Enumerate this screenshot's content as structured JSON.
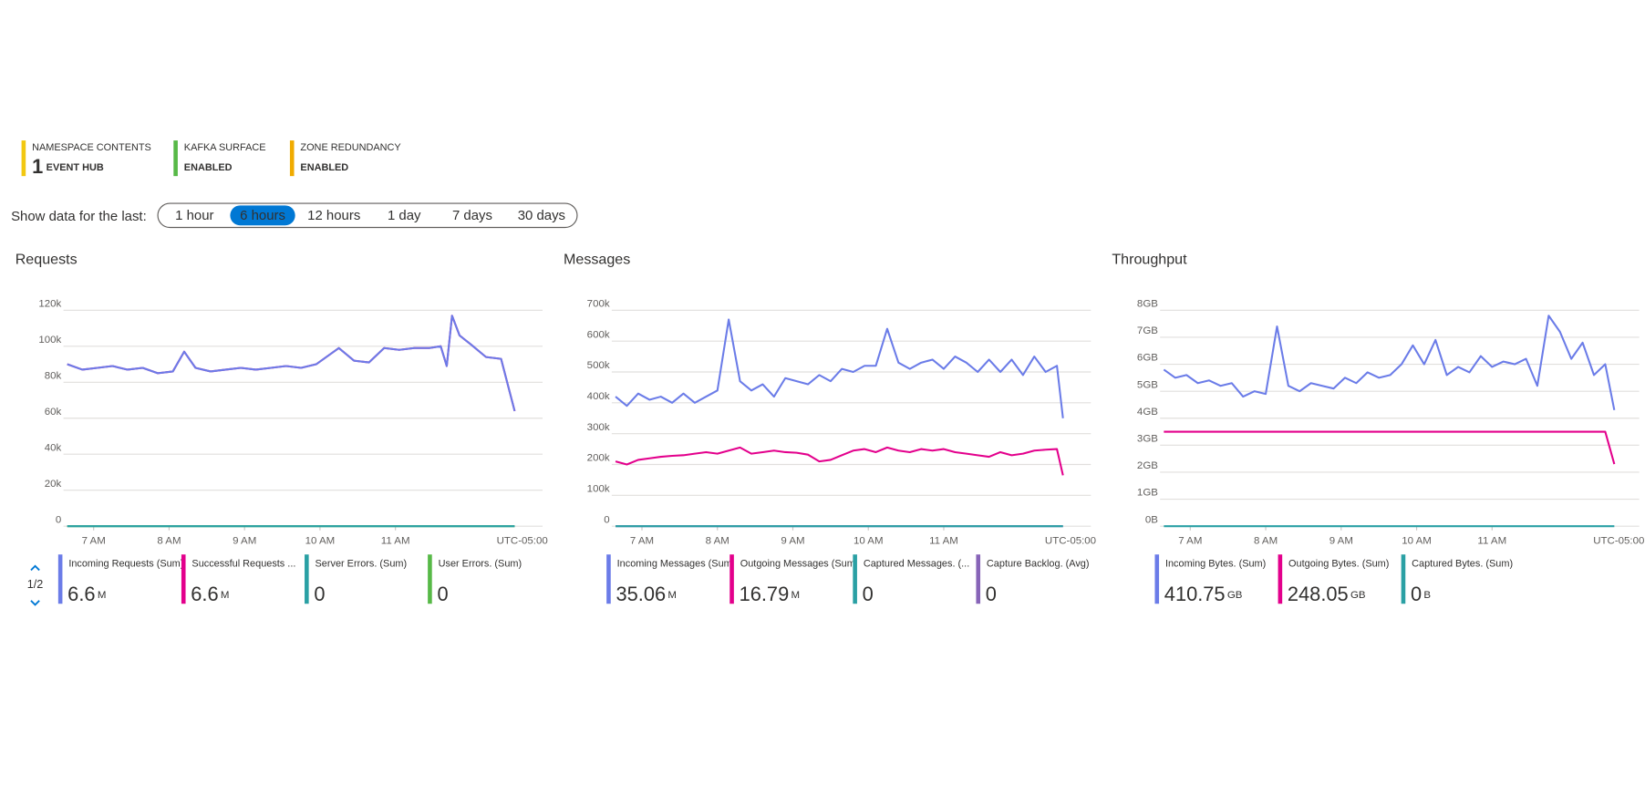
{
  "tiles": [
    {
      "label": "NAMESPACE CONTENTS",
      "value": 1,
      "unit": "EVENT HUB",
      "color": "#f2c811"
    },
    {
      "label": "KAFKA SURFACE",
      "value": "ENABLED",
      "color": "#57b947"
    },
    {
      "label": "ZONE REDUNDANCY",
      "value": "ENABLED",
      "color": "#f0ab00"
    }
  ],
  "time_range": {
    "label": "Show data for the last:",
    "options": [
      "1 hour",
      "6 hours",
      "12 hours",
      "1 day",
      "7 days",
      "30 days"
    ],
    "selected_index": 1
  },
  "chart_data": [
    {
      "type": "line",
      "title": "Requests",
      "legend_page": "1/2",
      "timezone": "UTC-05:00",
      "xlim": [
        6.6,
        12.95
      ],
      "xticks": [
        {
          "value": 7,
          "label": "7 AM"
        },
        {
          "value": 8,
          "label": "8 AM"
        },
        {
          "value": 9,
          "label": "9 AM"
        },
        {
          "value": 10,
          "label": "10 AM"
        },
        {
          "value": 11,
          "label": "11 AM"
        }
      ],
      "ylim": [
        0,
        120000
      ],
      "yticks": [
        0,
        {
          "value": 20000,
          "label": "20k"
        },
        {
          "value": 40000,
          "label": "40k"
        },
        {
          "value": 60000,
          "label": "60k"
        },
        {
          "value": 80000,
          "label": "80k"
        },
        {
          "value": 100000,
          "label": "100k"
        },
        {
          "value": 120000,
          "label": "120k"
        }
      ],
      "grid": true,
      "x": [
        6.65,
        6.85,
        7.05,
        7.25,
        7.45,
        7.65,
        7.85,
        8.05,
        8.2,
        8.35,
        8.55,
        8.75,
        8.95,
        9.15,
        9.35,
        9.55,
        9.75,
        9.95,
        10.15,
        10.25,
        10.45,
        10.65,
        10.85,
        11.05,
        11.25,
        11.45,
        11.6,
        11.68,
        11.75,
        11.85,
        12.0,
        12.2,
        12.4,
        12.58
      ],
      "series": [
        {
          "name": "Incoming Requests (Sum)",
          "total": "6.6",
          "unit": "M",
          "color": "#6b7ce8",
          "values": [
            90000,
            87000,
            88000,
            89000,
            87000,
            88000,
            85000,
            86000,
            97000,
            88000,
            86000,
            87000,
            88000,
            87000,
            88000,
            89000,
            88000,
            90000,
            96000,
            99000,
            92000,
            91000,
            99000,
            98000,
            99000,
            99000,
            100000,
            89000,
            117000,
            106000,
            101000,
            94000,
            93000,
            64000
          ]
        },
        {
          "name": "Successful Requests ...",
          "total": "6.6",
          "unit": "M",
          "color": "#e3008c",
          "values": [
            90000,
            87000,
            88000,
            89000,
            87000,
            88000,
            85000,
            86000,
            97000,
            88000,
            86000,
            87000,
            88000,
            87000,
            88000,
            89000,
            88000,
            90000,
            96000,
            99000,
            92000,
            91000,
            99000,
            98000,
            99000,
            99000,
            100000,
            89000,
            117000,
            106000,
            101000,
            94000,
            93000,
            64000
          ]
        },
        {
          "name": "Server Errors. (Sum)",
          "total": "0",
          "color": "#2aa0a4",
          "x": [
            6.65,
            12.58
          ],
          "values": [
            0,
            0
          ]
        },
        {
          "name": "User Errors. (Sum)",
          "total": "0",
          "color": "#57b947",
          "x": [
            6.65,
            12.58
          ],
          "values": [
            0,
            0
          ]
        }
      ]
    },
    {
      "type": "line",
      "title": "Messages",
      "timezone": "UTC-05:00",
      "xlim": [
        6.6,
        12.95
      ],
      "xticks": [
        {
          "value": 7,
          "label": "7 AM"
        },
        {
          "value": 8,
          "label": "8 AM"
        },
        {
          "value": 9,
          "label": "9 AM"
        },
        {
          "value": 10,
          "label": "10 AM"
        },
        {
          "value": 11,
          "label": "11 AM"
        }
      ],
      "ylim": [
        0,
        700000
      ],
      "yticks": [
        0,
        {
          "value": 100000,
          "label": "100k"
        },
        {
          "value": 200000,
          "label": "200k"
        },
        {
          "value": 300000,
          "label": "300k"
        },
        {
          "value": 400000,
          "label": "400k"
        },
        {
          "value": 500000,
          "label": "500k"
        },
        {
          "value": 600000,
          "label": "600k"
        },
        {
          "value": 700000,
          "label": "700k"
        }
      ],
      "grid": true,
      "x": [
        6.65,
        6.8,
        6.95,
        7.1,
        7.25,
        7.4,
        7.55,
        7.7,
        7.85,
        8.0,
        8.15,
        8.3,
        8.45,
        8.6,
        8.75,
        8.9,
        9.05,
        9.2,
        9.35,
        9.5,
        9.65,
        9.8,
        9.95,
        10.1,
        10.25,
        10.4,
        10.55,
        10.7,
        10.85,
        11.0,
        11.15,
        11.3,
        11.45,
        11.6,
        11.75,
        11.9,
        12.05,
        12.2,
        12.35,
        12.5,
        12.58
      ],
      "series": [
        {
          "name": "Incoming Messages (Sum",
          "total": "35.06",
          "unit": "M",
          "color": "#6b7ce8",
          "values": [
            420000,
            390000,
            430000,
            410000,
            420000,
            400000,
            430000,
            400000,
            420000,
            440000,
            670000,
            470000,
            440000,
            460000,
            420000,
            480000,
            470000,
            460000,
            490000,
            470000,
            510000,
            500000,
            520000,
            520000,
            640000,
            530000,
            510000,
            530000,
            540000,
            510000,
            550000,
            530000,
            500000,
            540000,
            500000,
            540000,
            490000,
            550000,
            500000,
            520000,
            350000
          ]
        },
        {
          "name": "Outgoing Messages (Sum",
          "total": "16.79",
          "unit": "M",
          "color": "#e3008c",
          "values": [
            210000,
            200000,
            215000,
            220000,
            225000,
            228000,
            230000,
            235000,
            240000,
            235000,
            245000,
            255000,
            235000,
            240000,
            245000,
            240000,
            238000,
            232000,
            210000,
            215000,
            230000,
            245000,
            250000,
            240000,
            255000,
            245000,
            240000,
            250000,
            245000,
            250000,
            240000,
            235000,
            230000,
            225000,
            240000,
            230000,
            235000,
            245000,
            248000,
            250000,
            165000
          ]
        },
        {
          "name": "Captured Messages. (...",
          "total": "0",
          "color": "#2aa0a4",
          "x": [
            6.65,
            12.58
          ],
          "values": [
            0,
            0
          ]
        },
        {
          "name": "Capture Backlog. (Avg)",
          "total": "0",
          "color": "#8764b8",
          "x": [
            6.65,
            12.58
          ],
          "values": [
            0,
            0
          ]
        }
      ]
    },
    {
      "type": "line",
      "title": "Throughput",
      "timezone": "UTC-05:00",
      "xlim": [
        6.6,
        12.95
      ],
      "xticks": [
        {
          "value": 7,
          "label": "7 AM"
        },
        {
          "value": 8,
          "label": "8 AM"
        },
        {
          "value": 9,
          "label": "9 AM"
        },
        {
          "value": 10,
          "label": "10 AM"
        },
        {
          "value": 11,
          "label": "11 AM"
        }
      ],
      "ylim": [
        0,
        8
      ],
      "yticks": [
        {
          "value": 0,
          "label": "0B"
        },
        {
          "value": 1,
          "label": "1GB"
        },
        {
          "value": 2,
          "label": "2GB"
        },
        {
          "value": 3,
          "label": "3GB"
        },
        {
          "value": 4,
          "label": "4GB"
        },
        {
          "value": 5,
          "label": "5GB"
        },
        {
          "value": 6,
          "label": "6GB"
        },
        {
          "value": 7,
          "label": "7GB"
        },
        {
          "value": 8,
          "label": "8GB"
        }
      ],
      "grid": true,
      "x": [
        6.65,
        6.8,
        6.95,
        7.1,
        7.25,
        7.4,
        7.55,
        7.7,
        7.85,
        8.0,
        8.15,
        8.3,
        8.45,
        8.6,
        8.75,
        8.9,
        9.05,
        9.2,
        9.35,
        9.5,
        9.65,
        9.8,
        9.95,
        10.1,
        10.25,
        10.4,
        10.55,
        10.7,
        10.85,
        11.0,
        11.15,
        11.3,
        11.45,
        11.6,
        11.75,
        11.9,
        12.05,
        12.2,
        12.35,
        12.5,
        12.62
      ],
      "series": [
        {
          "name": "Incoming Bytes. (Sum)",
          "total": "410.75",
          "unit": "GB",
          "color": "#6b7ce8",
          "values": [
            5.8,
            5.5,
            5.6,
            5.3,
            5.4,
            5.2,
            5.3,
            4.8,
            5.0,
            4.9,
            7.4,
            5.2,
            5.0,
            5.3,
            5.2,
            5.1,
            5.5,
            5.3,
            5.7,
            5.5,
            5.6,
            6.0,
            6.7,
            6.0,
            6.9,
            5.6,
            5.9,
            5.7,
            6.3,
            5.9,
            6.1,
            6.0,
            6.2,
            5.2,
            7.8,
            7.2,
            6.2,
            6.8,
            5.6,
            6.0,
            4.3
          ]
        },
        {
          "name": "Outgoing Bytes. (Sum)",
          "total": "248.05",
          "unit": "GB",
          "color": "#e3008c",
          "x": [
            6.65,
            12.5,
            12.62
          ],
          "values": [
            3.5,
            3.5,
            2.3
          ]
        },
        {
          "name": "Captured Bytes. (Sum)",
          "total": "0",
          "unit": "B",
          "color": "#2aa0a4",
          "x": [
            6.65,
            12.62
          ],
          "values": [
            0,
            0
          ]
        }
      ]
    }
  ]
}
